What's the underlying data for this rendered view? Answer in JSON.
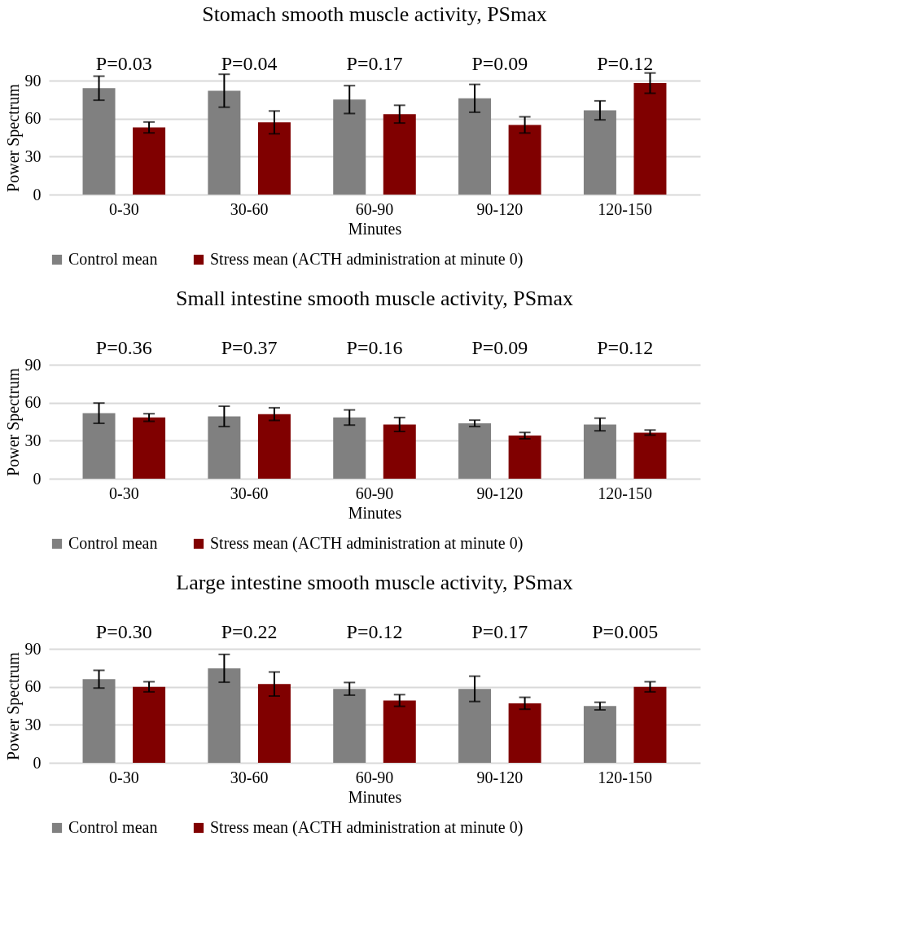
{
  "chart_data": [
    {
      "type": "bar",
      "title": "Stomach smooth muscle activity, PSmax",
      "xlabel": "Minutes",
      "ylabel": "Power Spectrum",
      "categories": [
        "0-30",
        "30-60",
        "60-90",
        "90-120",
        "120-150"
      ],
      "ylim": [
        0,
        90
      ],
      "yticks": [
        0,
        30,
        60,
        90
      ],
      "grid": "y",
      "legend": "bottom",
      "annotations": [
        "P=0.03",
        "P=0.04",
        "P=0.17",
        "P=0.09",
        "P=0.12"
      ],
      "series": [
        {
          "name": "Control mean",
          "color": "#808080",
          "values": [
            84,
            82,
            75,
            76,
            66.5
          ],
          "errors": [
            9.5,
            13,
            11,
            11,
            7.5
          ]
        },
        {
          "name": "Stress mean (ACTH administration at minute 0)",
          "color": "#800000",
          "values": [
            53,
            57,
            63.5,
            55,
            88
          ],
          "errors": [
            4.3,
            9,
            7,
            6.4,
            8
          ]
        }
      ]
    },
    {
      "type": "bar",
      "title": "Small intestine smooth muscle activity, PSmax",
      "xlabel": "Minutes",
      "ylabel": "Power Spectrum",
      "categories": [
        "0-30",
        "30-60",
        "60-90",
        "90-120",
        "120-150"
      ],
      "ylim": [
        0,
        90
      ],
      "yticks": [
        0,
        30,
        60,
        90
      ],
      "grid": "y",
      "legend": "bottom",
      "annotations": [
        "P=0.36",
        "P=0.37",
        "P=0.16",
        "P=0.09",
        "P=0.12"
      ],
      "series": [
        {
          "name": "Control mean",
          "color": "#808080",
          "values": [
            51.7,
            49.2,
            48.3,
            43.7,
            42.8
          ],
          "errors": [
            8,
            8,
            6,
            2.5,
            5
          ]
        },
        {
          "name": "Stress mean (ACTH administration at minute 0)",
          "color": "#800000",
          "values": [
            48.3,
            51,
            42.8,
            34,
            36.4
          ],
          "errors": [
            3,
            5,
            5.5,
            2.5,
            2
          ]
        }
      ]
    },
    {
      "type": "bar",
      "title": "Large intestine smooth muscle activity, PSmax",
      "xlabel": "Minutes",
      "ylabel": "Power Spectrum",
      "categories": [
        "0-30",
        "30-60",
        "60-90",
        "90-120",
        "120-150"
      ],
      "ylim": [
        0,
        90
      ],
      "yticks": [
        0,
        30,
        60,
        90
      ],
      "grid": "y",
      "legend": "bottom",
      "annotations": [
        "P=0.30",
        "P=0.22",
        "P=0.12",
        "P=0.17",
        "P=0.005"
      ],
      "series": [
        {
          "name": "Control mean",
          "color": "#808080",
          "values": [
            66,
            74.6,
            58.4,
            58.4,
            44.8
          ],
          "errors": [
            7,
            11,
            5,
            10,
            3
          ]
        },
        {
          "name": "Stress mean (ACTH administration at minute 0)",
          "color": "#800000",
          "values": [
            60,
            62.2,
            49.2,
            47,
            60
          ],
          "errors": [
            4,
            9.5,
            4.6,
            4.7,
            4
          ]
        }
      ]
    }
  ]
}
